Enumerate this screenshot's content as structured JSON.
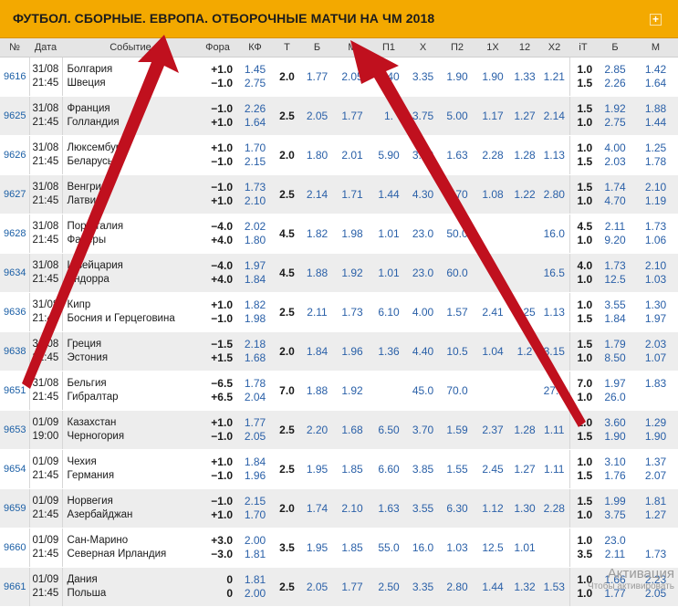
{
  "header": {
    "title": "ФУТБОЛ. СБОРНЫЕ. ЕВРОПА. ОТБОРОЧНЫЕ МАТЧИ НА ЧМ 2018",
    "expand_glyph": "+"
  },
  "columns": [
    "№",
    "Дата",
    "Событие",
    "Фора",
    "КФ",
    "Т",
    "Б",
    "М",
    "П1",
    "Х",
    "П2",
    "1Х",
    "12",
    "Х2",
    "iT",
    "Б",
    "М"
  ],
  "matches": [
    {
      "num": "9616",
      "date": "31/08",
      "time": "21:45",
      "team1": "Болгария",
      "team2": "Швеция",
      "fora1": "+1.0",
      "fora2": "−1.0",
      "kf1": "1.45",
      "kf2": "2.75",
      "total": "2.0",
      "b": "1.77",
      "m": "2.05",
      "p1": "4.40",
      "x": "3.35",
      "p2": "1.90",
      "x1": "1.90",
      "d12": "1.33",
      "x2": "1.21",
      "it1": "1.0",
      "it2": "1.5",
      "itb1": "2.85",
      "itb2": "2.26",
      "itm1": "1.42",
      "itm2": "1.64"
    },
    {
      "num": "9625",
      "date": "31/08",
      "time": "21:45",
      "team1": "Франция",
      "team2": "Голландия",
      "fora1": "−1.0",
      "fora2": "+1.0",
      "kf1": "2.26",
      "kf2": "1.64",
      "total": "2.5",
      "b": "2.05",
      "m": "1.77",
      "p1": "1.",
      "x": "3.75",
      "p2": "5.00",
      "x1": "1.17",
      "d12": "1.27",
      "x2": "2.14",
      "it1": "1.5",
      "it2": "1.0",
      "itb1": "1.92",
      "itb2": "2.75",
      "itm1": "1.88",
      "itm2": "1.44"
    },
    {
      "num": "9626",
      "date": "31/08",
      "time": "21:45",
      "team1": "Люксембург",
      "team2": "Беларусь",
      "fora1": "+1.0",
      "fora2": "−1.0",
      "kf1": "1.70",
      "kf2": "2.15",
      "total": "2.0",
      "b": "1.80",
      "m": "2.01",
      "p1": "5.90",
      "x": "3.70",
      "p2": "1.63",
      "x1": "2.28",
      "d12": "1.28",
      "x2": "1.13",
      "it1": "1.0",
      "it2": "1.5",
      "itb1": "4.00",
      "itb2": "2.03",
      "itm1": "1.25",
      "itm2": "1.78"
    },
    {
      "num": "9627",
      "date": "31/08",
      "time": "21:45",
      "team1": "Венгрия",
      "team2": "Латвия",
      "fora1": "−1.0",
      "fora2": "+1.0",
      "kf1": "1.73",
      "kf2": "2.10",
      "total": "2.5",
      "b": "2.14",
      "m": "1.71",
      "p1": "1.44",
      "x": "4.30",
      "p2": "7.70",
      "x1": "1.08",
      "d12": "1.22",
      "x2": "2.80",
      "it1": "1.5",
      "it2": "1.0",
      "itb1": "1.74",
      "itb2": "4.70",
      "itm1": "2.10",
      "itm2": "1.19"
    },
    {
      "num": "9628",
      "date": "31/08",
      "time": "21:45",
      "team1": "Португалия",
      "team2": "Фареры",
      "fora1": "−4.0",
      "fora2": "+4.0",
      "kf1": "2.02",
      "kf2": "1.80",
      "total": "4.5",
      "b": "1.82",
      "m": "1.98",
      "p1": "1.01",
      "x": "23.0",
      "p2": "50.0",
      "x1": "",
      "d12": "",
      "x2": "16.0",
      "it1": "4.5",
      "it2": "1.0",
      "itb1": "2.11",
      "itb2": "9.20",
      "itm1": "1.73",
      "itm2": "1.06"
    },
    {
      "num": "9634",
      "date": "31/08",
      "time": "21:45",
      "team1": "Швейцария",
      "team2": "Андорра",
      "fora1": "−4.0",
      "fora2": "+4.0",
      "kf1": "1.97",
      "kf2": "1.84",
      "total": "4.5",
      "b": "1.88",
      "m": "1.92",
      "p1": "1.01",
      "x": "23.0",
      "p2": "60.0",
      "x1": "",
      "d12": "",
      "x2": "16.5",
      "it1": "4.0",
      "it2": "1.0",
      "itb1": "1.73",
      "itb2": "12.5",
      "itm1": "2.10",
      "itm2": "1.03"
    },
    {
      "num": "9636",
      "date": "31/08",
      "time": "21:45",
      "team1": "Кипр",
      "team2": "Босния и Герцеговина",
      "fora1": "+1.0",
      "fora2": "−1.0",
      "kf1": "1.82",
      "kf2": "1.98",
      "total": "2.5",
      "b": "2.11",
      "m": "1.73",
      "p1": "6.10",
      "x": "4.00",
      "p2": "1.57",
      "x1": "2.41",
      "d12": "1.25",
      "x2": "1.13",
      "it1": "1.0",
      "it2": "1.5",
      "itb1": "3.55",
      "itb2": "1.84",
      "itm1": "1.30",
      "itm2": "1.97"
    },
    {
      "num": "9638",
      "date": "31/08",
      "time": "21:45",
      "team1": "Греция",
      "team2": "Эстония",
      "fora1": "−1.5",
      "fora2": "+1.5",
      "kf1": "2.18",
      "kf2": "1.68",
      "total": "2.0",
      "b": "1.84",
      "m": "1.96",
      "p1": "1.36",
      "x": "4.40",
      "p2": "10.5",
      "x1": "1.04",
      "d12": "1.2",
      "x2": "3.15",
      "it1": "1.5",
      "it2": "1.0",
      "itb1": "1.79",
      "itb2": "8.50",
      "itm1": "2.03",
      "itm2": "1.07"
    },
    {
      "num": "9651",
      "date": "31/08",
      "time": "21:45",
      "team1": "Бельгия",
      "team2": "Гибралтар",
      "fora1": "−6.5",
      "fora2": "+6.5",
      "kf1": "1.78",
      "kf2": "2.04",
      "total": "7.0",
      "b": "1.88",
      "m": "1.92",
      "p1": "",
      "x": "45.0",
      "p2": "70.0",
      "x1": "",
      "d12": "",
      "x2": "27.0",
      "it1": "7.0",
      "it2": "1.0",
      "itb1": "1.97",
      "itb2": "26.0",
      "itm1": "1.83",
      "itm2": ""
    },
    {
      "num": "9653",
      "date": "01/09",
      "time": "19:00",
      "team1": "Казахстан",
      "team2": "Черногория",
      "fora1": "+1.0",
      "fora2": "−1.0",
      "kf1": "1.77",
      "kf2": "2.05",
      "total": "2.5",
      "b": "2.20",
      "m": "1.68",
      "p1": "6.50",
      "x": "3.70",
      "p2": "1.59",
      "x1": "2.37",
      "d12": "1.28",
      "x2": "1.11",
      "it1": "1.0",
      "it2": "1.5",
      "itb1": "3.60",
      "itb2": "1.90",
      "itm1": "1.29",
      "itm2": "1.90"
    },
    {
      "num": "9654",
      "date": "01/09",
      "time": "21:45",
      "team1": "Чехия",
      "team2": "Германия",
      "fora1": "+1.0",
      "fora2": "−1.0",
      "kf1": "1.84",
      "kf2": "1.96",
      "total": "2.5",
      "b": "1.95",
      "m": "1.85",
      "p1": "6.60",
      "x": "3.85",
      "p2": "1.55",
      "x1": "2.45",
      "d12": "1.27",
      "x2": "1.11",
      "it1": "1.0",
      "it2": "1.5",
      "itb1": "3.10",
      "itb2": "1.76",
      "itm1": "1.37",
      "itm2": "2.07"
    },
    {
      "num": "9659",
      "date": "01/09",
      "time": "21:45",
      "team1": "Норвегия",
      "team2": "Азербайджан",
      "fora1": "−1.0",
      "fora2": "+1.0",
      "kf1": "2.15",
      "kf2": "1.70",
      "total": "2.0",
      "b": "1.74",
      "m": "2.10",
      "p1": "1.63",
      "x": "3.55",
      "p2": "6.30",
      "x1": "1.12",
      "d12": "1.30",
      "x2": "2.28",
      "it1": "1.5",
      "it2": "1.0",
      "itb1": "1.99",
      "itb2": "3.75",
      "itm1": "1.81",
      "itm2": "1.27"
    },
    {
      "num": "9660",
      "date": "01/09",
      "time": "21:45",
      "team1": "Сан-Марино",
      "team2": "Северная Ирландия",
      "fora1": "+3.0",
      "fora2": "−3.0",
      "kf1": "2.00",
      "kf2": "1.81",
      "total": "3.5",
      "b": "1.95",
      "m": "1.85",
      "p1": "55.0",
      "x": "16.0",
      "p2": "1.03",
      "x1": "12.5",
      "d12": "1.01",
      "x2": "",
      "it1": "1.0",
      "it2": "3.5",
      "itb1": "23.0",
      "itb2": "2.11",
      "itm1": "",
      "itm2": "1.73"
    },
    {
      "num": "9661",
      "date": "01/09",
      "time": "21:45",
      "team1": "Дания",
      "team2": "Польша",
      "fora1": "0",
      "fora2": "0",
      "kf1": "1.81",
      "kf2": "2.00",
      "total": "2.5",
      "b": "2.05",
      "m": "1.77",
      "p1": "2.50",
      "x": "3.35",
      "p2": "2.80",
      "x1": "1.44",
      "d12": "1.32",
      "x2": "1.53",
      "it1": "1.0",
      "it2": "1.0",
      "itb1": "1.66",
      "itb2": "1.77",
      "itm1": "2.23",
      "itm2": "2.05"
    }
  ],
  "overlay": {
    "arrow_color": "#c0101e",
    "watermark_line1": "Активация",
    "watermark_line2": "Чтобы активировать"
  }
}
